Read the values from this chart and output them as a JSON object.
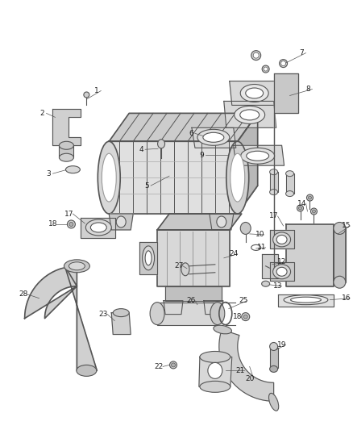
{
  "background_color": "#ffffff",
  "fig_width": 4.38,
  "fig_height": 5.33,
  "dpi": 100,
  "line_color": "#555555",
  "label_fontsize": 6.5,
  "label_color": "#222222"
}
